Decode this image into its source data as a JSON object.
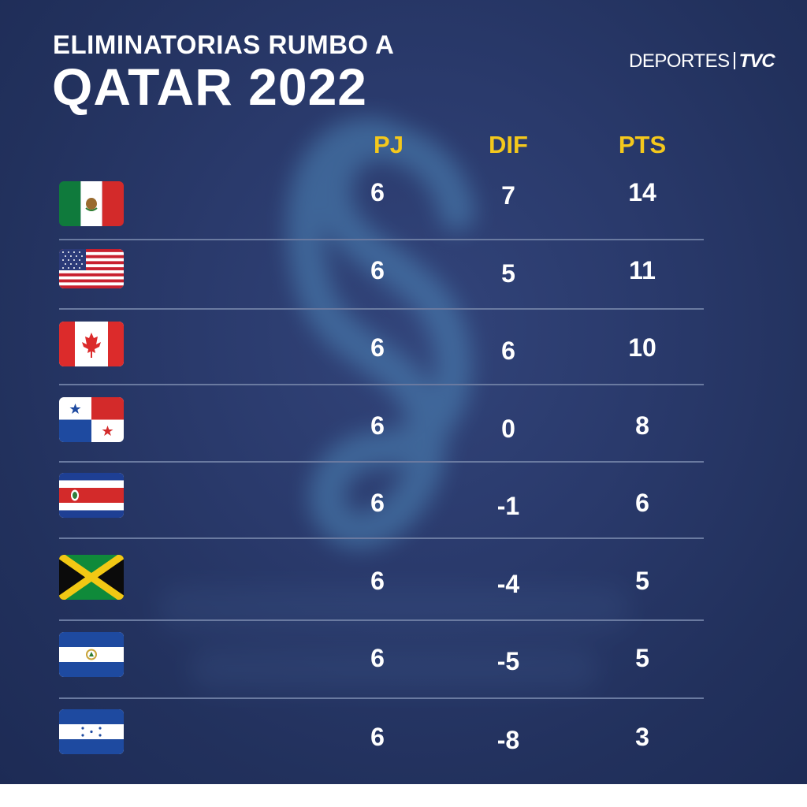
{
  "header": {
    "title_line1": "ELIMINATORIAS RUMBO A",
    "title_line2": "QATAR 2022",
    "logo_left": "DEPORTES",
    "logo_right": "TVC"
  },
  "table": {
    "columns": [
      "PJ",
      "DIF",
      "PTS"
    ],
    "rows": [
      {
        "flag": "mexico-flag",
        "pj": "6",
        "dif": "7",
        "pts": "14"
      },
      {
        "flag": "usa-flag",
        "pj": "6",
        "dif": "5",
        "pts": "11"
      },
      {
        "flag": "canada-flag",
        "pj": "6",
        "dif": "6",
        "pts": "10"
      },
      {
        "flag": "panama-flag",
        "pj": "6",
        "dif": "0",
        "pts": "8"
      },
      {
        "flag": "costa-rica-flag",
        "pj": "6",
        "dif": "-1",
        "pts": "6"
      },
      {
        "flag": "jamaica-flag",
        "pj": "6",
        "dif": "-4",
        "pts": "5"
      },
      {
        "flag": "el-salvador-flag",
        "pj": "6",
        "dif": "-5",
        "pts": "5"
      },
      {
        "flag": "honduras-flag",
        "pj": "6",
        "dif": "-8",
        "pts": "3"
      }
    ]
  },
  "colors": {
    "background": "#26365f",
    "header_accent": "#f4c81c",
    "text": "#ffffff",
    "divider": "#6a7aa0"
  }
}
